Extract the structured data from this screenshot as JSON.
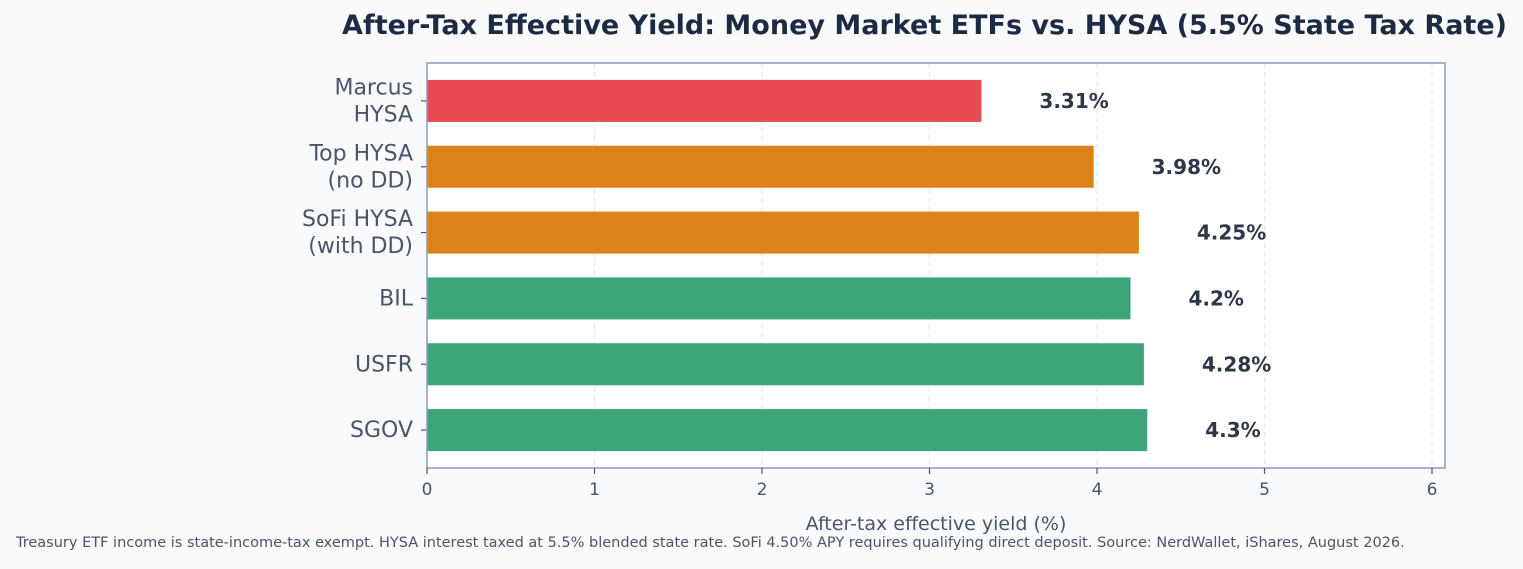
{
  "chart_data": {
    "type": "bar",
    "orientation": "horizontal",
    "title": "After-Tax Effective Yield: Money Market ETFs vs. HYSA (5.5% State Tax Rate)",
    "xlabel": "After-tax effective yield (%)",
    "ylabel": "",
    "xlim": [
      0,
      6
    ],
    "xticks": [
      "0",
      "1",
      "2",
      "3",
      "4",
      "5",
      "6"
    ],
    "grid": "vertical-dashed",
    "categories": [
      "Marcus\nHYSA",
      "Top HYSA\n(no DD)",
      "SoFi HYSA\n(with DD)",
      "BIL",
      "USFR",
      "SGOV"
    ],
    "values": [
      3.31,
      3.98,
      4.25,
      4.2,
      4.28,
      4.3
    ],
    "data_labels": [
      "3.31%",
      "3.98%",
      "4.25%",
      "4.2%",
      "4.28%",
      "4.3%"
    ],
    "bar_colors": [
      "#e84c50",
      "#dc8219",
      "#dc8219",
      "#3ca67a",
      "#3ca67a",
      "#3ca67a"
    ],
    "footnote": "Treasury ETF income is state-income-tax exempt. HYSA interest taxed at 5.5% blended state rate. SoFi 4.50% APY requires qualifying direct deposit. Source: NerdWallet, iShares, August 2026."
  },
  "colors": {
    "frame": "#8fa0bf",
    "grid": "#e6e9ee",
    "text": "#4a5568",
    "label": "#2d3748"
  }
}
